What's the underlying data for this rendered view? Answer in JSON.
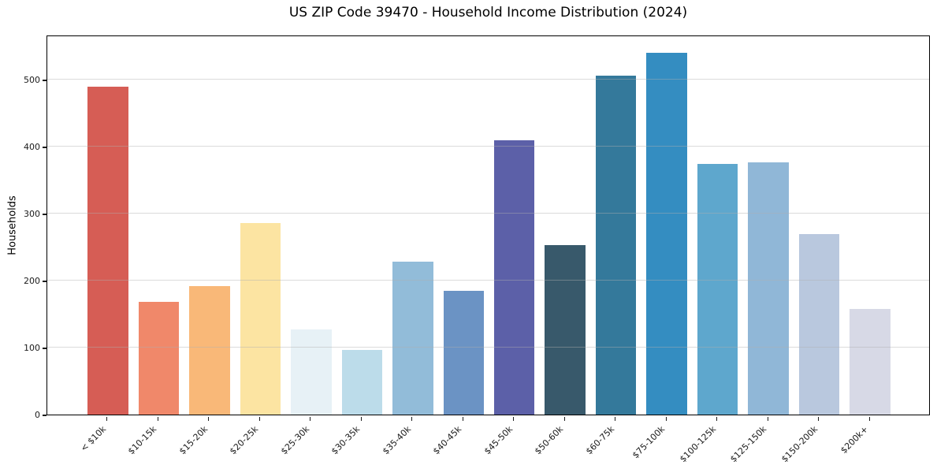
{
  "chart_data": {
    "type": "bar",
    "title": "US ZIP Code 39470 - Household Income Distribution (2024)",
    "xlabel": "",
    "ylabel": "Households",
    "categories": [
      "< $10k",
      "$10-15k",
      "$15-20k",
      "$20-25k",
      "$25-30k",
      "$30-35k",
      "$35-40k",
      "$40-45k",
      "$45-50k",
      "$50-60k",
      "$60-75k",
      "$75-100k",
      "$100-125k",
      "$125-150k",
      "$150-200k",
      "$200k+"
    ],
    "values": [
      489,
      168,
      192,
      286,
      127,
      96,
      228,
      185,
      410,
      253,
      506,
      540,
      374,
      377,
      269,
      158
    ],
    "bar_colors": [
      "#d65d55",
      "#f0886a",
      "#f9b878",
      "#fce4a2",
      "#e7f1f6",
      "#bcdcea",
      "#92bcd9",
      "#6b93c4",
      "#5c60a8",
      "#38596b",
      "#34799b",
      "#348dc1",
      "#5ea7cd",
      "#90b7d7",
      "#b9c8de",
      "#d7d9e6"
    ],
    "yticks": [
      0,
      100,
      200,
      300,
      400,
      500
    ],
    "ylim": [
      0,
      567
    ],
    "grid": "horizontal",
    "grid_over_bars": true,
    "legend": "none",
    "colors": {
      "background": "#ffffff",
      "spine": "#000000",
      "grid": "#b0b0b0",
      "text": "#1a1a1a"
    }
  }
}
